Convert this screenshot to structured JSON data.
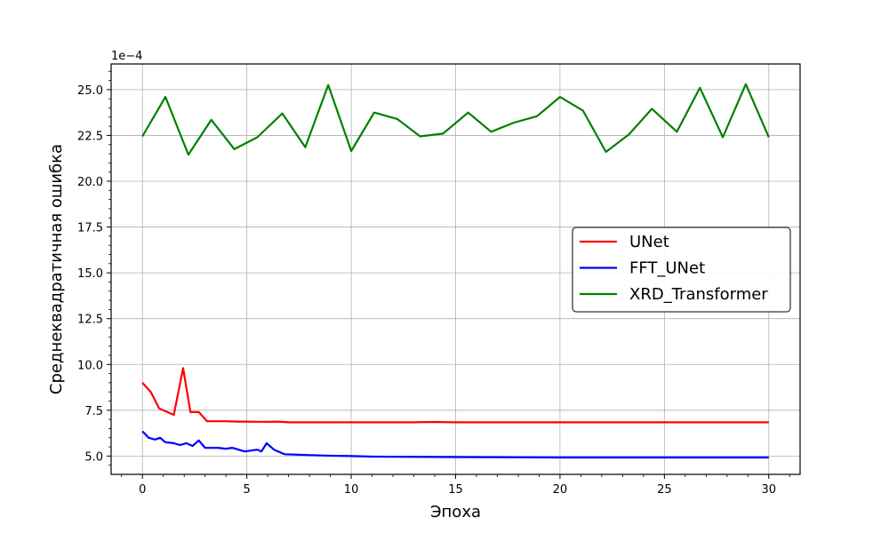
{
  "chart_data": {
    "type": "line",
    "xlabel": "Эпоха",
    "ylabel": "Среднеквадратичная ошибка",
    "y_offset_label": "1e−4",
    "xlim": [
      -1.5,
      31.5
    ],
    "ylim": [
      4.0,
      26.4
    ],
    "xticks": [
      0,
      5,
      10,
      15,
      20,
      25,
      30
    ],
    "xtick_labels": [
      "0",
      "5",
      "10",
      "15",
      "20",
      "25",
      "30"
    ],
    "yticks": [
      5.0,
      7.5,
      10.0,
      12.5,
      15.0,
      17.5,
      20.0,
      22.5,
      25.0
    ],
    "ytick_labels": [
      "5.0",
      "7.5",
      "10.0",
      "12.5",
      "15.0",
      "17.5",
      "20.0",
      "22.5",
      "25.0"
    ],
    "grid": true,
    "legend_position": "center-right",
    "series": [
      {
        "name": "UNet",
        "color": "#ff0000",
        "x": [
          0,
          0.4,
          0.8,
          1.5,
          1.95,
          2.3,
          2.7,
          3.1,
          3.5,
          4.0,
          4.5,
          5.0,
          5.5,
          6.0,
          6.5,
          7.0,
          8.0,
          9.0,
          10,
          11,
          12,
          13,
          14,
          15,
          16,
          17,
          18,
          19,
          20,
          21,
          22,
          23,
          24,
          25,
          26,
          27,
          28,
          29,
          30
        ],
        "y": [
          9.0,
          8.5,
          7.6,
          7.25,
          9.8,
          7.4,
          7.4,
          6.9,
          6.9,
          6.9,
          6.88,
          6.88,
          6.87,
          6.87,
          6.88,
          6.84,
          6.84,
          6.84,
          6.84,
          6.84,
          6.84,
          6.84,
          6.86,
          6.84,
          6.84,
          6.84,
          6.84,
          6.84,
          6.84,
          6.84,
          6.84,
          6.84,
          6.84,
          6.84,
          6.84,
          6.84,
          6.84,
          6.84,
          6.84
        ]
      },
      {
        "name": "FFT_UNet",
        "color": "#0000ff",
        "x": [
          0,
          0.3,
          0.6,
          0.85,
          1.1,
          1.5,
          1.8,
          2.1,
          2.4,
          2.7,
          3.0,
          3.3,
          3.6,
          4.0,
          4.3,
          4.6,
          4.9,
          5.2,
          5.5,
          5.7,
          5.95,
          6.3,
          6.8,
          8.0,
          9.0,
          10,
          11,
          12,
          14,
          16,
          18,
          20,
          22,
          24,
          26,
          28,
          30
        ],
        "y": [
          6.35,
          6.0,
          5.9,
          6.0,
          5.75,
          5.7,
          5.6,
          5.7,
          5.55,
          5.85,
          5.45,
          5.45,
          5.45,
          5.4,
          5.45,
          5.35,
          5.25,
          5.3,
          5.35,
          5.25,
          5.7,
          5.35,
          5.1,
          5.05,
          5.02,
          5.0,
          4.97,
          4.96,
          4.95,
          4.94,
          4.93,
          4.92,
          4.92,
          4.92,
          4.92,
          4.92,
          4.92
        ]
      },
      {
        "name": "XRD_Transformer",
        "color": "#008000",
        "x": [
          0,
          1.1,
          2.2,
          3.3,
          4.4,
          5.5,
          6.7,
          7.8,
          8.9,
          10,
          11.1,
          12.2,
          13.3,
          14.4,
          15.6,
          16.7,
          17.8,
          18.9,
          20,
          21.1,
          22.2,
          23.3,
          24.4,
          25.6,
          26.7,
          27.8,
          28.9,
          30
        ],
        "y": [
          22.45,
          24.6,
          21.45,
          23.35,
          21.75,
          22.4,
          23.7,
          21.85,
          25.25,
          21.65,
          23.75,
          23.4,
          22.45,
          22.6,
          23.75,
          22.7,
          23.2,
          23.55,
          24.6,
          23.85,
          21.6,
          22.55,
          23.95,
          22.7,
          25.1,
          22.4,
          25.3,
          22.4
        ]
      }
    ]
  }
}
